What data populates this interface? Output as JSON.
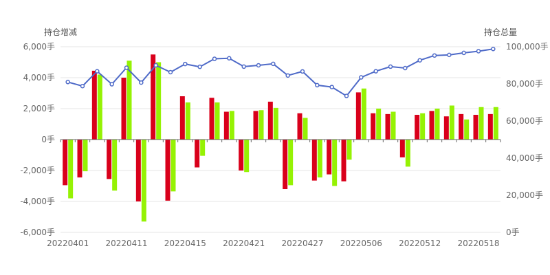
{
  "chart_data": {
    "type": "bar+line",
    "left_axis": {
      "title": "持仓增减",
      "ticks": [
        "6,000手",
        "4,000手",
        "2,000手",
        "0手",
        "-2,000手",
        "-4,000手",
        "-6,000手"
      ],
      "tick_values": [
        6000,
        4000,
        2000,
        0,
        -2000,
        -4000,
        -6000
      ],
      "ylim": [
        -6000,
        6000
      ]
    },
    "right_axis": {
      "title": "持仓总量",
      "ticks": [
        "100,000手",
        "80,000手",
        "60,000手",
        "40,000手",
        "20,000手",
        "0手"
      ],
      "tick_values": [
        100000,
        80000,
        60000,
        40000,
        20000,
        0
      ],
      "ylim": [
        0,
        100000
      ]
    },
    "x_tick_labels": [
      {
        "index": 0,
        "label": "20220401"
      },
      {
        "index": 4,
        "label": "20220411"
      },
      {
        "index": 8,
        "label": "20220415"
      },
      {
        "index": 12,
        "label": "20220421"
      },
      {
        "index": 16,
        "label": "20220427"
      },
      {
        "index": 20,
        "label": "20220506"
      },
      {
        "index": 24,
        "label": "20220512"
      },
      {
        "index": 28,
        "label": "20220518"
      }
    ],
    "grid": true,
    "colors": {
      "series_red": "#d9001b",
      "series_green": "#95f204",
      "line": "#4e6ac8",
      "grid": "#e6e6e6",
      "text": "#666666"
    },
    "series": [
      {
        "type": "bar",
        "color": "#d9001b",
        "values": [
          -2950,
          -2450,
          4450,
          -2550,
          4000,
          -4000,
          5500,
          -3950,
          2800,
          -1800,
          2700,
          1800,
          -2000,
          1850,
          2450,
          -3200,
          1700,
          -2650,
          -2250,
          -2700,
          3050,
          1700,
          1650,
          -1150,
          1600,
          1850,
          1500,
          1650,
          1600,
          1650
        ]
      },
      {
        "type": "bar",
        "color": "#95f204",
        "values": [
          -3800,
          -2050,
          4200,
          -3300,
          5100,
          -5300,
          5000,
          -3350,
          2400,
          -1050,
          2400,
          1850,
          -2100,
          1900,
          2050,
          -2950,
          1400,
          -2450,
          -3000,
          -1300,
          3300,
          2000,
          1800,
          -1750,
          1700,
          2000,
          2200,
          1300,
          2100,
          2100
        ]
      },
      {
        "type": "line",
        "axis": "right",
        "color": "#4e6ac8",
        "values": [
          81000,
          78800,
          86800,
          79800,
          88700,
          80700,
          90000,
          86300,
          90700,
          89200,
          93500,
          93800,
          89300,
          90000,
          90800,
          84500,
          86700,
          79300,
          78300,
          73500,
          83500,
          86800,
          89300,
          88500,
          92700,
          95300,
          95600,
          96700,
          97600,
          98800
        ]
      }
    ]
  }
}
